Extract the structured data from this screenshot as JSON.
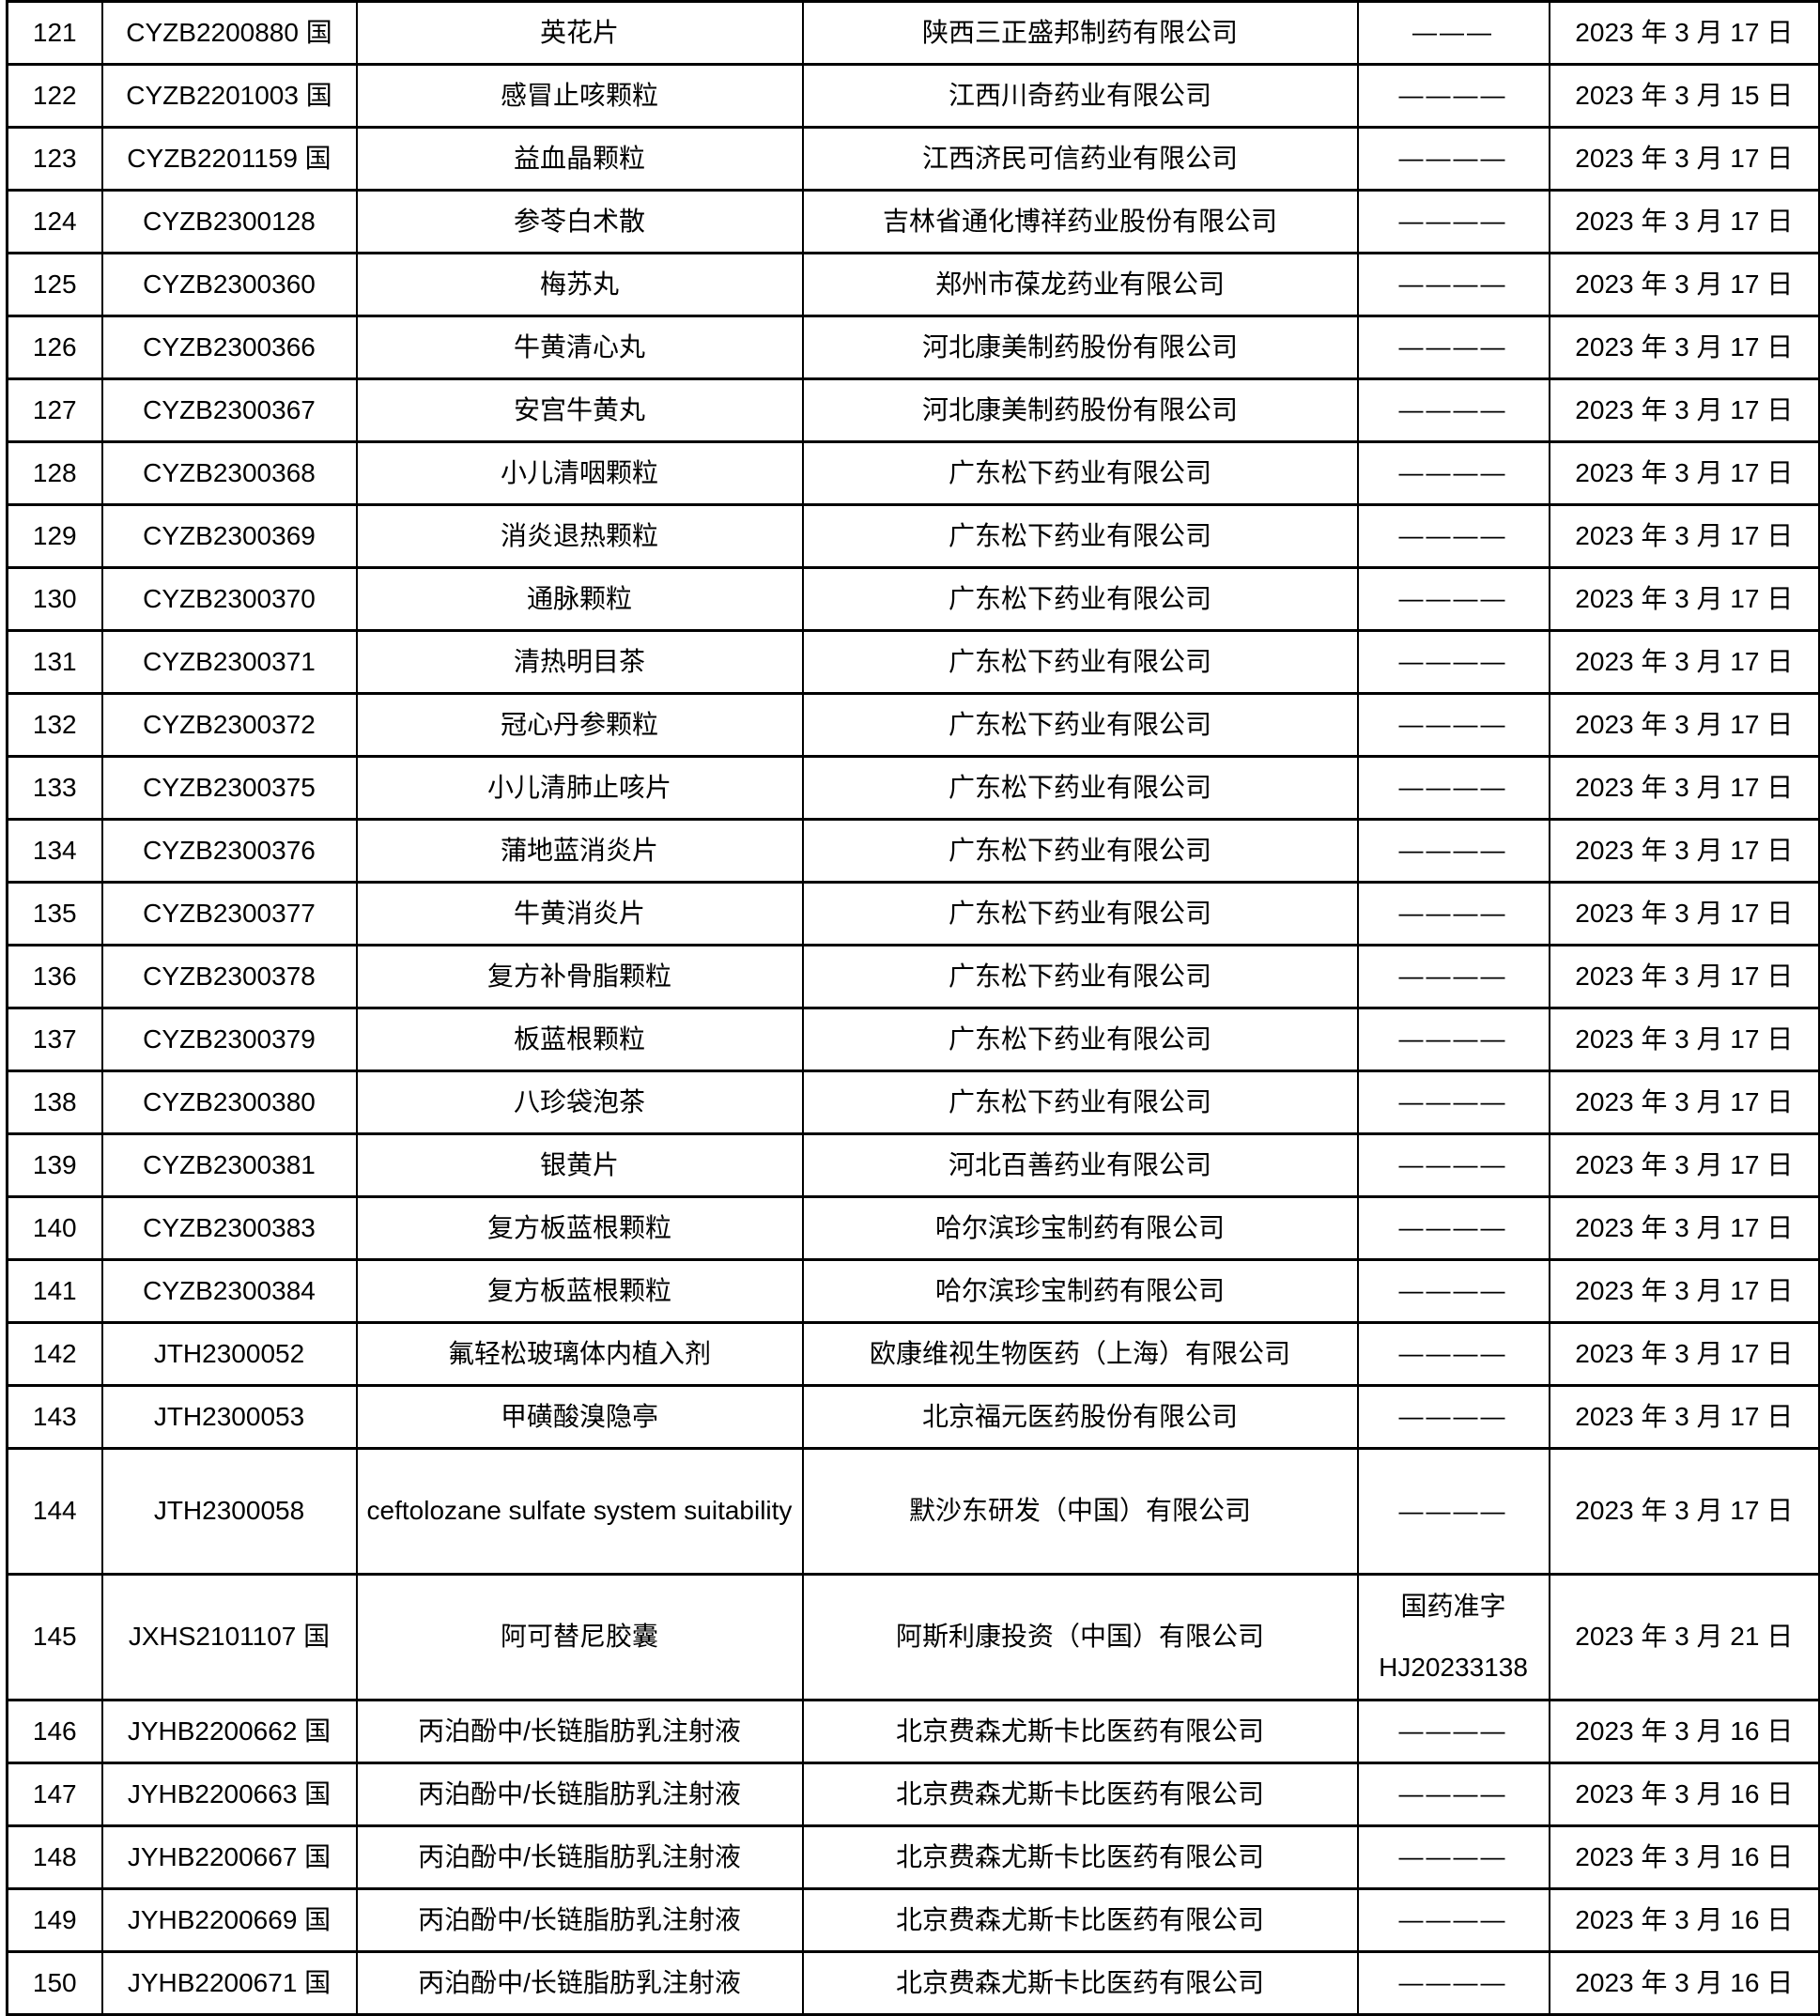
{
  "page": {
    "background": "#ffffff",
    "text_color": "#000000",
    "border_color": "#000000"
  },
  "table": {
    "rows": [
      {
        "no": "121",
        "acceptance_no": "CYZB2200880 国",
        "drug": "英花片",
        "company": "陕西三正盛邦制药有限公司",
        "approval": [
          "———"
        ],
        "date": "2023 年 3 月 17 日"
      },
      {
        "no": "122",
        "acceptance_no": "CYZB2201003 国",
        "drug": "感冒止咳颗粒",
        "company": "江西川奇药业有限公司",
        "approval": [
          "————"
        ],
        "date": "2023 年 3 月 15 日"
      },
      {
        "no": "123",
        "acceptance_no": "CYZB2201159 国",
        "drug": "益血晶颗粒",
        "company": "江西济民可信药业有限公司",
        "approval": [
          "————"
        ],
        "date": "2023 年 3 月 17 日"
      },
      {
        "no": "124",
        "acceptance_no": "CYZB2300128",
        "drug": "参苓白术散",
        "company": "吉林省通化博祥药业股份有限公司",
        "approval": [
          "————"
        ],
        "date": "2023 年 3 月 17 日"
      },
      {
        "no": "125",
        "acceptance_no": "CYZB2300360",
        "drug": "梅苏丸",
        "company": "郑州市葆龙药业有限公司",
        "approval": [
          "————"
        ],
        "date": "2023 年 3 月 17 日"
      },
      {
        "no": "126",
        "acceptance_no": "CYZB2300366",
        "drug": "牛黄清心丸",
        "company": "河北康美制药股份有限公司",
        "approval": [
          "————"
        ],
        "date": "2023 年 3 月 17 日"
      },
      {
        "no": "127",
        "acceptance_no": "CYZB2300367",
        "drug": "安宫牛黄丸",
        "company": "河北康美制药股份有限公司",
        "approval": [
          "————"
        ],
        "date": "2023 年 3 月 17 日"
      },
      {
        "no": "128",
        "acceptance_no": "CYZB2300368",
        "drug": "小儿清咽颗粒",
        "company": "广东松下药业有限公司",
        "approval": [
          "————"
        ],
        "date": "2023 年 3 月 17 日"
      },
      {
        "no": "129",
        "acceptance_no": "CYZB2300369",
        "drug": "消炎退热颗粒",
        "company": "广东松下药业有限公司",
        "approval": [
          "————"
        ],
        "date": "2023 年 3 月 17 日"
      },
      {
        "no": "130",
        "acceptance_no": "CYZB2300370",
        "drug": "通脉颗粒",
        "company": "广东松下药业有限公司",
        "approval": [
          "————"
        ],
        "date": "2023 年 3 月 17 日"
      },
      {
        "no": "131",
        "acceptance_no": "CYZB2300371",
        "drug": "清热明目茶",
        "company": "广东松下药业有限公司",
        "approval": [
          "————"
        ],
        "date": "2023 年 3 月 17 日"
      },
      {
        "no": "132",
        "acceptance_no": "CYZB2300372",
        "drug": "冠心丹参颗粒",
        "company": "广东松下药业有限公司",
        "approval": [
          "————"
        ],
        "date": "2023 年 3 月 17 日"
      },
      {
        "no": "133",
        "acceptance_no": "CYZB2300375",
        "drug": "小儿清肺止咳片",
        "company": "广东松下药业有限公司",
        "approval": [
          "————"
        ],
        "date": "2023 年 3 月 17 日"
      },
      {
        "no": "134",
        "acceptance_no": "CYZB2300376",
        "drug": "蒲地蓝消炎片",
        "company": "广东松下药业有限公司",
        "approval": [
          "————"
        ],
        "date": "2023 年 3 月 17 日"
      },
      {
        "no": "135",
        "acceptance_no": "CYZB2300377",
        "drug": "牛黄消炎片",
        "company": "广东松下药业有限公司",
        "approval": [
          "————"
        ],
        "date": "2023 年 3 月 17 日"
      },
      {
        "no": "136",
        "acceptance_no": "CYZB2300378",
        "drug": "复方补骨脂颗粒",
        "company": "广东松下药业有限公司",
        "approval": [
          "————"
        ],
        "date": "2023 年 3 月 17 日"
      },
      {
        "no": "137",
        "acceptance_no": "CYZB2300379",
        "drug": "板蓝根颗粒",
        "company": "广东松下药业有限公司",
        "approval": [
          "————"
        ],
        "date": "2023 年 3 月 17 日"
      },
      {
        "no": "138",
        "acceptance_no": "CYZB2300380",
        "drug": "八珍袋泡茶",
        "company": "广东松下药业有限公司",
        "approval": [
          "————"
        ],
        "date": "2023 年 3 月 17 日"
      },
      {
        "no": "139",
        "acceptance_no": "CYZB2300381",
        "drug": "银黄片",
        "company": "河北百善药业有限公司",
        "approval": [
          "————"
        ],
        "date": "2023 年 3 月 17 日"
      },
      {
        "no": "140",
        "acceptance_no": "CYZB2300383",
        "drug": "复方板蓝根颗粒",
        "company": "哈尔滨珍宝制药有限公司",
        "approval": [
          "————"
        ],
        "date": "2023 年 3 月 17 日"
      },
      {
        "no": "141",
        "acceptance_no": "CYZB2300384",
        "drug": "复方板蓝根颗粒",
        "company": "哈尔滨珍宝制药有限公司",
        "approval": [
          "————"
        ],
        "date": "2023 年 3 月 17 日"
      },
      {
        "no": "142",
        "acceptance_no": "JTH2300052",
        "drug": "氟轻松玻璃体内植入剂",
        "company": "欧康维视生物医药（上海）有限公司",
        "approval": [
          "————"
        ],
        "date": "2023 年 3 月 17 日"
      },
      {
        "no": "143",
        "acceptance_no": "JTH2300053",
        "drug": "甲磺酸溴隐亭",
        "company": "北京福元医药股份有限公司",
        "approval": [
          "————"
        ],
        "date": "2023 年 3 月 17 日"
      },
      {
        "no": "144",
        "acceptance_no": "JTH2300058",
        "drug": "ceftolozane sulfate system suitability",
        "company": "默沙东研发（中国）有限公司",
        "approval": [
          "————"
        ],
        "date": "2023 年 3 月 17 日"
      },
      {
        "no": "145",
        "acceptance_no": "JXHS2101107 国",
        "drug": "阿可替尼胶囊",
        "company": "阿斯利康投资（中国）有限公司",
        "approval": [
          "国药准字",
          "HJ20233138"
        ],
        "date": "2023 年 3 月 21 日"
      },
      {
        "no": "146",
        "acceptance_no": "JYHB2200662 国",
        "drug": "丙泊酚中/长链脂肪乳注射液",
        "company": "北京费森尤斯卡比医药有限公司",
        "approval": [
          "————"
        ],
        "date": "2023 年 3 月 16 日"
      },
      {
        "no": "147",
        "acceptance_no": "JYHB2200663 国",
        "drug": "丙泊酚中/长链脂肪乳注射液",
        "company": "北京费森尤斯卡比医药有限公司",
        "approval": [
          "————"
        ],
        "date": "2023 年 3 月 16 日"
      },
      {
        "no": "148",
        "acceptance_no": "JYHB2200667 国",
        "drug": "丙泊酚中/长链脂肪乳注射液",
        "company": "北京费森尤斯卡比医药有限公司",
        "approval": [
          "————"
        ],
        "date": "2023 年 3 月 16 日"
      },
      {
        "no": "149",
        "acceptance_no": "JYHB2200669 国",
        "drug": "丙泊酚中/长链脂肪乳注射液",
        "company": "北京费森尤斯卡比医药有限公司",
        "approval": [
          "————"
        ],
        "date": "2023 年 3 月 16 日"
      },
      {
        "no": "150",
        "acceptance_no": "JYHB2200671 国",
        "drug": "丙泊酚中/长链脂肪乳注射液",
        "company": "北京费森尤斯卡比医药有限公司",
        "approval": [
          "————"
        ],
        "date": "2023 年 3 月 16 日"
      }
    ]
  }
}
